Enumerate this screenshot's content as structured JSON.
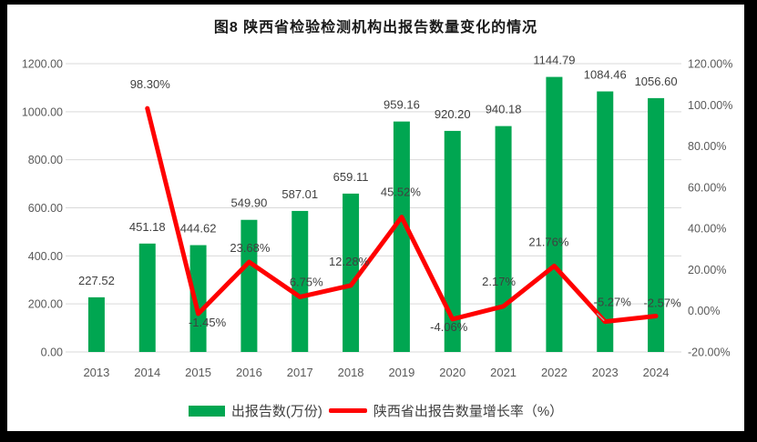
{
  "window": {
    "frame_color": "#000000",
    "canvas_color": "#FFFFFF"
  },
  "chart_data": {
    "type": "bar+line",
    "title": "图8  陕西省检验检测机构出报告数量变化的情况",
    "categories": [
      "2013",
      "2014",
      "2015",
      "2016",
      "2017",
      "2018",
      "2019",
      "2020",
      "2021",
      "2022",
      "2023",
      "2024"
    ],
    "series": [
      {
        "name": "出报告数(万份)",
        "type": "bar",
        "axis": "left",
        "color": "#00A651",
        "values": [
          227.52,
          451.18,
          444.62,
          549.9,
          587.01,
          659.11,
          959.16,
          920.2,
          940.18,
          1144.79,
          1084.46,
          1056.6
        ],
        "data_labels": [
          "227.52",
          "451.18",
          "444.62",
          "549.90",
          "587.01",
          "659.11",
          "959.16",
          "920.20",
          "940.18",
          "1144.79",
          "1084.46",
          "1056.60"
        ]
      },
      {
        "name": "陕西省出报告数量增长率（%）",
        "type": "line",
        "axis": "right",
        "color": "#FF0000",
        "values": [
          null,
          98.3,
          -1.45,
          23.68,
          6.75,
          12.28,
          45.52,
          -4.06,
          2.17,
          21.76,
          -5.27,
          -2.57
        ],
        "data_labels": [
          null,
          "98.30%",
          "-1.45%",
          "23.68%",
          "6.75%",
          "12.28%",
          "45.52%",
          "-4.06%",
          "2.17%",
          "21.76%",
          "-5.27%",
          "-2.57%"
        ],
        "label_offsets": {
          "dx": [
            0,
            3,
            10,
            1,
            7,
            -2,
            -1,
            -4,
            -5,
            -6,
            8,
            7
          ],
          "dy": [
            0,
            -22,
            14,
            -11,
            -12,
            -22,
            -23,
            13,
            -23,
            -22,
            -17,
            -10
          ]
        },
        "leader_line_at_index": 10
      }
    ],
    "left_axis": {
      "min": 0,
      "max": 1200,
      "step": 200,
      "tick_labels": [
        "0.00",
        "200.00",
        "400.00",
        "600.00",
        "800.00",
        "1000.00",
        "1200.00"
      ]
    },
    "right_axis": {
      "min": -20,
      "max": 120,
      "step": 20,
      "tick_labels": [
        "-20.00%",
        "0.00%",
        "20.00%",
        "40.00%",
        "60.00%",
        "80.00%",
        "100.00%",
        "120.00%"
      ]
    },
    "grid": true,
    "legend_position": "bottom",
    "colors": {
      "grid": "#D9D9D9",
      "axis_text": "#595959",
      "data_label_text": "#404040",
      "title_text": "#1A1A1A",
      "leader_line": "#A6A6A6"
    }
  },
  "legend": {
    "items": [
      {
        "label": "出报告数(万份)",
        "swatch": "bar",
        "color": "#00A651"
      },
      {
        "label": "陕西省出报告数量增长率（%）",
        "swatch": "line",
        "color": "#FF0000"
      }
    ]
  }
}
